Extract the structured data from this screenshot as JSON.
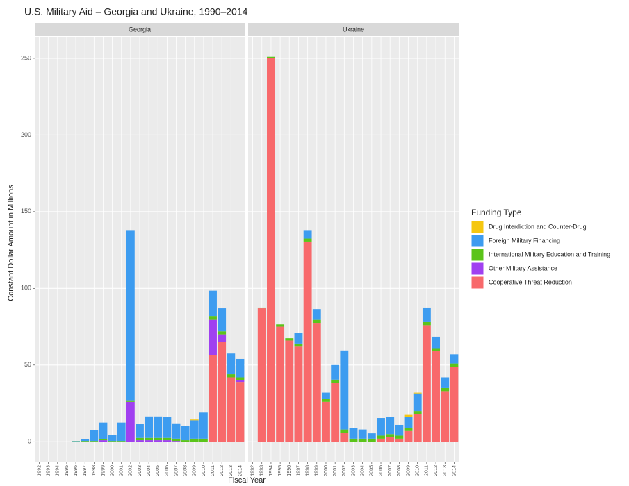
{
  "chart_data": {
    "type": "bar",
    "stacked": true,
    "title": "U.S. Military Aid – Georgia and Ukraine, 1990–2014",
    "ylabel": "Constant Dollar Amount in Millions",
    "xlabel": "Fiscal Year",
    "legend_title": "Funding Type",
    "legend": "right",
    "grid": true,
    "facets": [
      "Georgia",
      "Ukraine"
    ],
    "categories": [
      "1992",
      "1993",
      "1994",
      "1995",
      "1996",
      "1997",
      "1998",
      "1999",
      "2000",
      "2001",
      "2002",
      "2003",
      "2004",
      "2005",
      "2006",
      "2007",
      "2008",
      "2009",
      "2010",
      "2011",
      "2012",
      "2013",
      "2014"
    ],
    "ylim": [
      -13,
      264
    ],
    "yticks": [
      0,
      50,
      100,
      150,
      200,
      250
    ],
    "series": [
      {
        "name": "Drug Interdiction and Counter-Drug",
        "color": "#F5C710",
        "values": [
          [
            0,
            0,
            0,
            0,
            0,
            0,
            0,
            0,
            0,
            0,
            0,
            0,
            0,
            0,
            0,
            0,
            0,
            0.5,
            0,
            0,
            0,
            0,
            0
          ],
          [
            0,
            0,
            0,
            0,
            0,
            0,
            0,
            0,
            0,
            0,
            0,
            0,
            0,
            0,
            0,
            0,
            0,
            1.5,
            0.5,
            0,
            0,
            0,
            0
          ]
        ]
      },
      {
        "name": "Foreign Military Financing",
        "color": "#3D9CF0",
        "values": [
          [
            0,
            0,
            0,
            0,
            0.2,
            1,
            7,
            11,
            4,
            12,
            111,
            9,
            14,
            14,
            13.5,
            10,
            9.5,
            12,
            17,
            16.5,
            15,
            13.5,
            12
          ],
          [
            0,
            0,
            0,
            0,
            0,
            7,
            5.5,
            7,
            4,
            9.5,
            51.5,
            7,
            6,
            3.5,
            11.5,
            11,
            7,
            7,
            11.5,
            9.5,
            7.5,
            7,
            6
          ]
        ]
      },
      {
        "name": "International Military Education and Training",
        "color": "#5BC41A",
        "values": [
          [
            0,
            0,
            0,
            0,
            0.3,
            0.5,
            0.5,
            0.5,
            0.5,
            0.5,
            1,
            1.5,
            1.5,
            1.5,
            1.5,
            1.5,
            1,
            2,
            2,
            2.5,
            2,
            2,
            2
          ],
          [
            0,
            0.5,
            1,
            1.5,
            1.5,
            2,
            2,
            2,
            2,
            2,
            2,
            2,
            2,
            2,
            2,
            2,
            2,
            2,
            2,
            2,
            2,
            2,
            2
          ]
        ]
      },
      {
        "name": "Other Military Assistance",
        "color": "#A040F0",
        "values": [
          [
            0,
            0,
            0,
            0,
            0,
            0,
            0,
            1,
            0,
            0,
            26,
            1,
            1,
            1,
            1,
            0.5,
            0,
            0,
            0,
            23,
            5,
            0,
            1
          ],
          [
            0,
            0,
            0,
            0,
            0,
            0,
            0,
            0,
            0,
            0,
            0,
            0,
            0,
            0,
            0,
            0,
            0,
            0,
            0,
            0,
            0,
            0,
            0
          ]
        ]
      },
      {
        "name": "Cooperative Threat Reduction",
        "color": "#F8696B",
        "values": [
          [
            0,
            0,
            0,
            0,
            0,
            0,
            0,
            0,
            0,
            0,
            0,
            0,
            0,
            0,
            0,
            0,
            0,
            0,
            0,
            56.5,
            65,
            42,
            39
          ],
          [
            0,
            87,
            250,
            75,
            66,
            62,
            130.5,
            77.5,
            26,
            38.5,
            6,
            0,
            0,
            0,
            2,
            3,
            2,
            7,
            18,
            76,
            59,
            33,
            49
          ]
        ]
      }
    ]
  }
}
